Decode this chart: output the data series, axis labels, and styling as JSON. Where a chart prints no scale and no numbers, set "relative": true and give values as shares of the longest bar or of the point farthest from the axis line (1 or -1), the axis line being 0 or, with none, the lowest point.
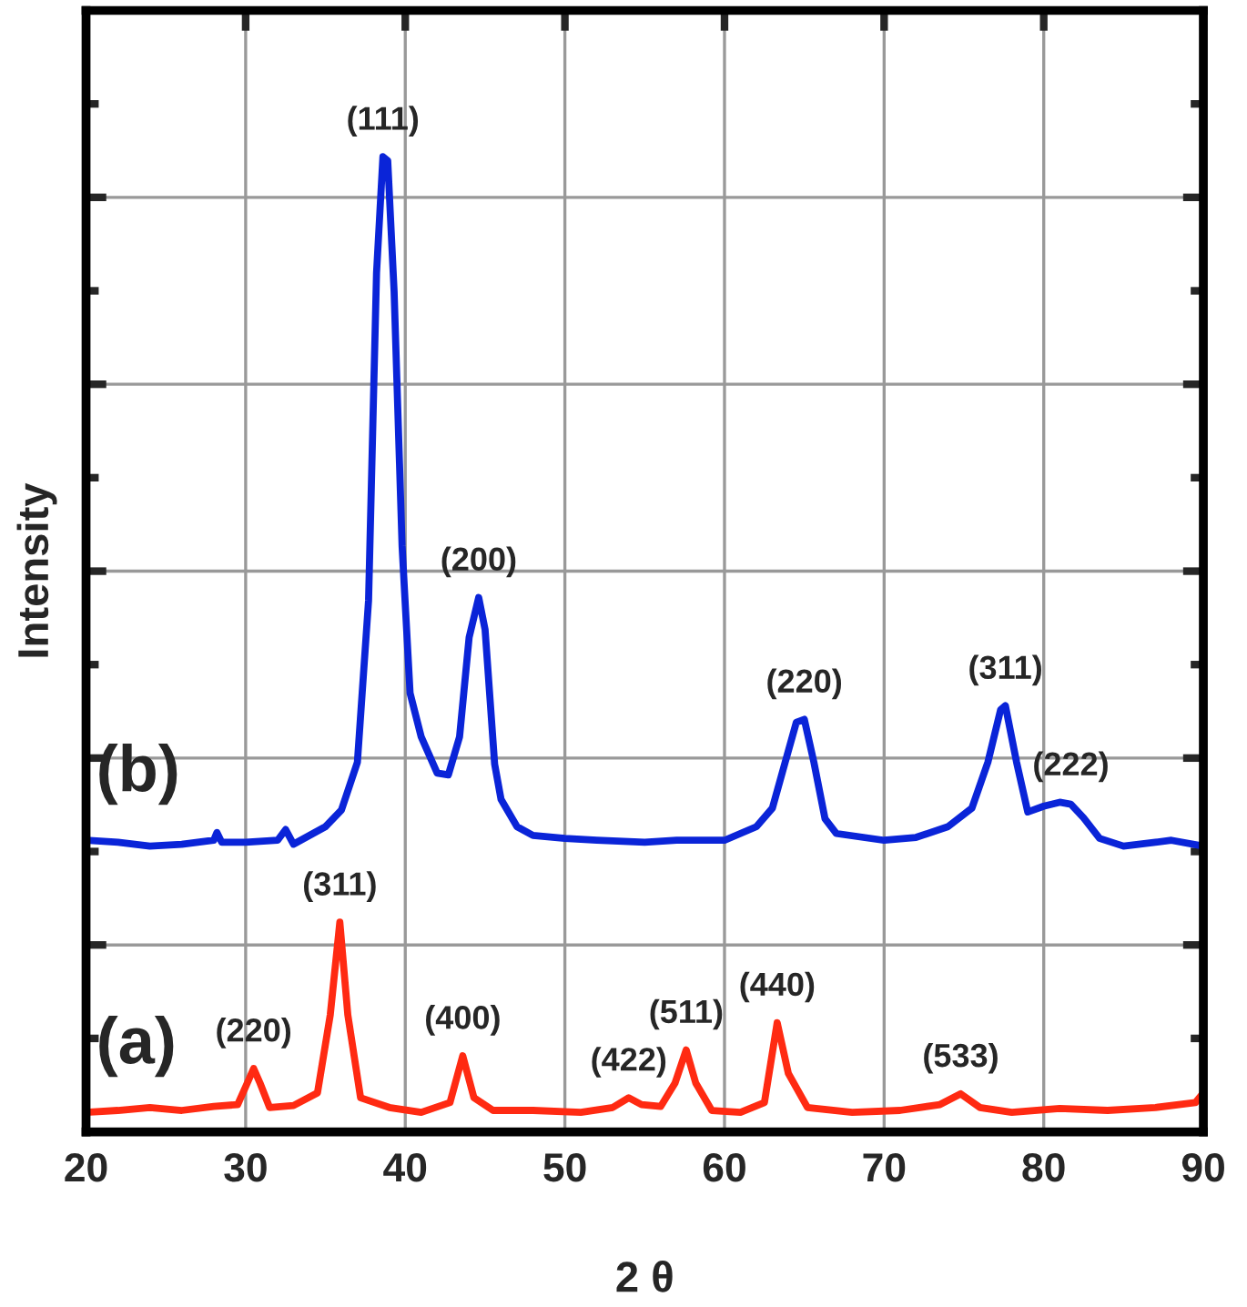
{
  "chart_data": {
    "type": "line",
    "xlabel": "2 θ",
    "ylabel": "Intensity",
    "relative": true,
    "xlim": [
      20,
      90
    ],
    "xticks": [
      20,
      30,
      40,
      50,
      60,
      70,
      80,
      90
    ],
    "grid": true,
    "legend": false,
    "marker": "none",
    "line_style": "solid",
    "series": [
      {
        "name": "(a)",
        "color": "#ff2a12",
        "x": [
          20,
          22,
          24,
          26,
          28,
          29.5,
          30.1,
          30.5,
          30.9,
          31.5,
          33,
          34.5,
          35.3,
          35.9,
          36.4,
          37.2,
          39,
          41,
          42.8,
          43.6,
          44.3,
          45.5,
          48,
          51,
          53,
          54,
          54.8,
          56,
          56.9,
          57.6,
          58.2,
          59.2,
          61,
          62.5,
          63.3,
          64,
          65.2,
          68,
          71,
          73.5,
          74.8,
          76,
          78,
          81,
          84,
          87,
          89.5,
          90
        ],
        "values": [
          0.02,
          0.022,
          0.025,
          0.022,
          0.026,
          0.028,
          0.05,
          0.065,
          0.05,
          0.025,
          0.027,
          0.04,
          0.12,
          0.215,
          0.12,
          0.035,
          0.025,
          0.02,
          0.03,
          0.078,
          0.035,
          0.022,
          0.022,
          0.02,
          0.025,
          0.035,
          0.028,
          0.026,
          0.05,
          0.084,
          0.05,
          0.022,
          0.02,
          0.03,
          0.112,
          0.06,
          0.025,
          0.02,
          0.022,
          0.028,
          0.039,
          0.025,
          0.02,
          0.024,
          0.022,
          0.025,
          0.03,
          0.04
        ]
      },
      {
        "name": "(b)",
        "color": "#0a24d8",
        "x": [
          20,
          22,
          24,
          26,
          28,
          28.2,
          28.5,
          30,
          32,
          32.5,
          33,
          35,
          36,
          37,
          37.7,
          38.2,
          38.6,
          38.9,
          39.3,
          39.8,
          40.3,
          41,
          42,
          42.7,
          43.4,
          44,
          44.6,
          45,
          45.6,
          46,
          47,
          48,
          50,
          52,
          55,
          57,
          60,
          62,
          63,
          63.8,
          64.5,
          65,
          65.6,
          66.3,
          67,
          70,
          72,
          74,
          75.5,
          76.5,
          77.3,
          77.6,
          78.3,
          79,
          80,
          81,
          81.7,
          82.5,
          83.5,
          85,
          87,
          88,
          90
        ],
        "values": [
          0.299,
          0.297,
          0.293,
          0.295,
          0.299,
          0.307,
          0.297,
          0.297,
          0.299,
          0.31,
          0.295,
          0.313,
          0.33,
          0.379,
          0.545,
          0.881,
          1.0,
          0.996,
          0.862,
          0.601,
          0.45,
          0.405,
          0.368,
          0.366,
          0.405,
          0.507,
          0.548,
          0.515,
          0.377,
          0.341,
          0.313,
          0.304,
          0.301,
          0.299,
          0.297,
          0.299,
          0.299,
          0.313,
          0.332,
          0.379,
          0.42,
          0.423,
          0.379,
          0.321,
          0.306,
          0.299,
          0.302,
          0.313,
          0.332,
          0.379,
          0.433,
          0.437,
          0.379,
          0.328,
          0.334,
          0.338,
          0.336,
          0.322,
          0.301,
          0.293,
          0.297,
          0.299,
          0.293
        ]
      }
    ],
    "annotations": [
      {
        "text": "(220)",
        "x": 30.5,
        "y": 0.065
      },
      {
        "text": "(311)",
        "x": 35.9,
        "y": 0.215
      },
      {
        "text": "(400)",
        "x": 43.6,
        "y": 0.078
      },
      {
        "text": "(422)",
        "x": 54.0,
        "y": 0.035
      },
      {
        "text": "(511)",
        "x": 57.6,
        "y": 0.084
      },
      {
        "text": "(440)",
        "x": 63.3,
        "y": 0.112
      },
      {
        "text": "(533)",
        "x": 74.8,
        "y": 0.039
      },
      {
        "text": "(111)",
        "x": 38.6,
        "y": 1.0
      },
      {
        "text": "(200)",
        "x": 44.6,
        "y": 0.548
      },
      {
        "text": "(220)",
        "x": 65.0,
        "y": 0.423
      },
      {
        "text": "(311)",
        "x": 77.6,
        "y": 0.437
      },
      {
        "text": "(222)",
        "x": 81.7,
        "y": 0.338
      }
    ]
  }
}
